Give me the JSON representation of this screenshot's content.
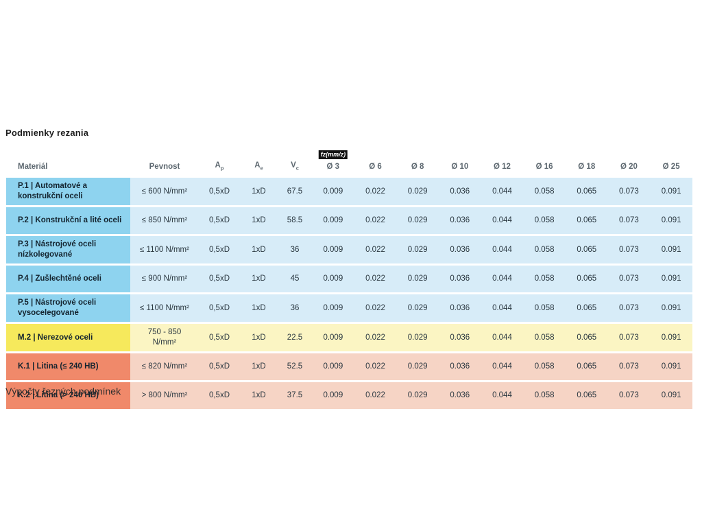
{
  "page": {
    "title": "Podmienky rezania",
    "footer_title": "Výpočty řezných podmínek"
  },
  "colors": {
    "p_material_bg": "#8ed3ef",
    "p_row_bg": "#d7ecf8",
    "m_material_bg": "#f6e95c",
    "m_row_bg": "#fbf5c3",
    "k_material_bg": "#f0896a",
    "k_row_bg": "#f6d4c5",
    "badge_bg": "#121212",
    "badge_text": "#ffffff",
    "header_text": "#5d6870",
    "cell_text": "#2a3740"
  },
  "table": {
    "fz_badge": "fz(mm/z)",
    "headers": {
      "material": "Materiál",
      "pevnost": "Pevnost",
      "ap": {
        "base": "A",
        "sub": "p"
      },
      "ae": {
        "base": "A",
        "sub": "e"
      },
      "vc": {
        "base": "V",
        "sub": "c"
      },
      "diameters": [
        "Ø 3",
        "Ø 6",
        "Ø 8",
        "Ø 10",
        "Ø 12",
        "Ø 16",
        "Ø 18",
        "Ø 20",
        "Ø 25"
      ]
    },
    "rows": [
      {
        "group": "P",
        "material": "P.1 | Automatové a\nkonstrukční oceli",
        "pevnost": "≤ 600 N/mm²",
        "ap": "0,5xD",
        "ae": "1xD",
        "vc": "67.5",
        "fz": [
          "0.009",
          "0.022",
          "0.029",
          "0.036",
          "0.044",
          "0.058",
          "0.065",
          "0.073",
          "0.091"
        ]
      },
      {
        "group": "P",
        "material": "P.2 | Konstrukční a lité oceli",
        "pevnost": "≤ 850 N/mm²",
        "ap": "0,5xD",
        "ae": "1xD",
        "vc": "58.5",
        "fz": [
          "0.009",
          "0.022",
          "0.029",
          "0.036",
          "0.044",
          "0.058",
          "0.065",
          "0.073",
          "0.091"
        ]
      },
      {
        "group": "P",
        "material": "P.3 | Nástrojové oceli\nnízkolegované",
        "pevnost": "≤ 1100 N/mm²",
        "ap": "0,5xD",
        "ae": "1xD",
        "vc": "36",
        "fz": [
          "0.009",
          "0.022",
          "0.029",
          "0.036",
          "0.044",
          "0.058",
          "0.065",
          "0.073",
          "0.091"
        ]
      },
      {
        "group": "P",
        "material": "P.4 | Zušlechtěné oceli",
        "pevnost": "≤ 900 N/mm²",
        "ap": "0,5xD",
        "ae": "1xD",
        "vc": "45",
        "fz": [
          "0.009",
          "0.022",
          "0.029",
          "0.036",
          "0.044",
          "0.058",
          "0.065",
          "0.073",
          "0.091"
        ]
      },
      {
        "group": "P",
        "material": "P.5 | Nástrojové oceli\nvysocelegované",
        "pevnost": "≤ 1100 N/mm²",
        "ap": "0,5xD",
        "ae": "1xD",
        "vc": "36",
        "fz": [
          "0.009",
          "0.022",
          "0.029",
          "0.036",
          "0.044",
          "0.058",
          "0.065",
          "0.073",
          "0.091"
        ]
      },
      {
        "group": "M",
        "material": "M.2 | Nerezové oceli",
        "pevnost": "750 - 850\nN/mm²",
        "ap": "0,5xD",
        "ae": "1xD",
        "vc": "22.5",
        "fz": [
          "0.009",
          "0.022",
          "0.029",
          "0.036",
          "0.044",
          "0.058",
          "0.065",
          "0.073",
          "0.091"
        ]
      },
      {
        "group": "K",
        "material": "K.1 | Litina (≤ 240 HB)",
        "pevnost": "≤ 820 N/mm²",
        "ap": "0,5xD",
        "ae": "1xD",
        "vc": "52.5",
        "fz": [
          "0.009",
          "0.022",
          "0.029",
          "0.036",
          "0.044",
          "0.058",
          "0.065",
          "0.073",
          "0.091"
        ]
      },
      {
        "group": "K",
        "material": "K.2 | Litina (> 240 HB)",
        "pevnost": "> 800 N/mm²",
        "ap": "0,5xD",
        "ae": "1xD",
        "vc": "37.5",
        "fz": [
          "0.009",
          "0.022",
          "0.029",
          "0.036",
          "0.044",
          "0.058",
          "0.065",
          "0.073",
          "0.091"
        ]
      }
    ]
  }
}
